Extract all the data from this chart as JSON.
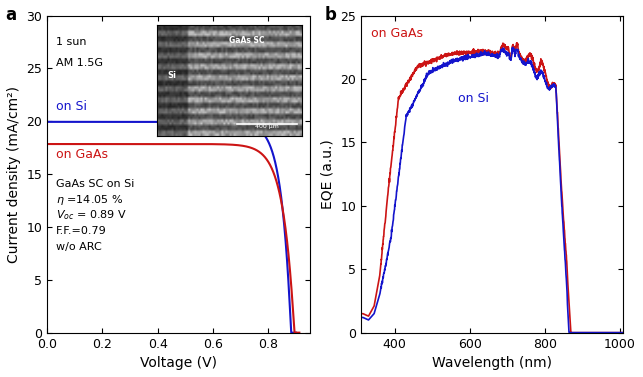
{
  "panel_a": {
    "xlabel": "Voltage (V)",
    "ylabel": "Current density (mA/cm²)",
    "xlim": [
      0.0,
      0.95
    ],
    "ylim": [
      0.0,
      30
    ],
    "xticks": [
      0.0,
      0.2,
      0.4,
      0.6,
      0.8
    ],
    "yticks": [
      0,
      5,
      10,
      15,
      20,
      25,
      30
    ],
    "on_si_color": "#1414cc",
    "on_gaas_color": "#cc1414",
    "jsc_si": 19.95,
    "jsc_gaas": 17.85,
    "voc_si": 0.883,
    "voc_gaas": 0.895,
    "n_si": 1.35,
    "n_gaas": 1.55
  },
  "panel_b": {
    "xlabel": "Wavelength (nm)",
    "ylabel": "EQE (a.u.)",
    "xlim": [
      310,
      1010
    ],
    "ylim": [
      0,
      25
    ],
    "xticks": [
      400,
      600,
      800,
      1000
    ],
    "yticks": [
      0,
      5,
      10,
      15,
      20,
      25
    ],
    "on_gaas_color": "#cc1414",
    "on_si_color": "#1414cc"
  },
  "text_color": "black",
  "bg_color": "#ffffff",
  "label_fontsize": 10,
  "tick_fontsize": 9,
  "panel_label_fontsize": 12,
  "annotation_fontsize": 8,
  "curve_label_fontsize": 9,
  "linewidth": 1.5
}
